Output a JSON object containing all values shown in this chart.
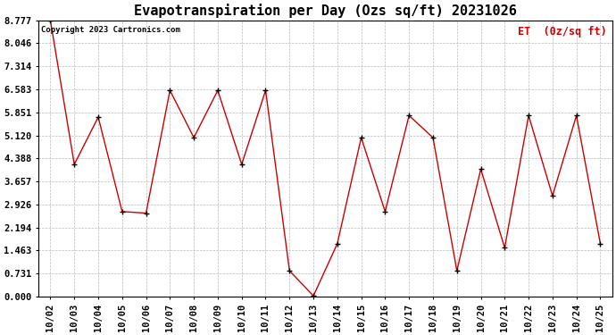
{
  "title": "Evapotranspiration per Day (Ozs sq/ft) 20231026",
  "legend_label": "ET  (0z/sq ft)",
  "copyright": "Copyright 2023 Cartronics.com",
  "dates": [
    "10/02",
    "10/03",
    "10/04",
    "10/05",
    "10/06",
    "10/07",
    "10/08",
    "10/09",
    "10/10",
    "10/11",
    "10/12",
    "10/13",
    "10/14",
    "10/15",
    "10/16",
    "10/17",
    "10/18",
    "10/19",
    "10/20",
    "10/21",
    "10/22",
    "10/23",
    "10/24",
    "10/25"
  ],
  "values": [
    8.777,
    4.2,
    5.7,
    2.7,
    2.65,
    6.55,
    5.05,
    6.55,
    4.2,
    6.55,
    0.82,
    0.02,
    1.68,
    5.05,
    2.7,
    5.75,
    5.05,
    0.82,
    4.05,
    1.55,
    5.75,
    3.2,
    5.75,
    1.68
  ],
  "yticks": [
    0.0,
    0.731,
    1.463,
    2.194,
    2.926,
    3.657,
    4.388,
    5.12,
    5.851,
    6.583,
    7.314,
    8.046,
    8.777
  ],
  "ymin": 0.0,
  "ymax": 8.777,
  "line_color": "#cc0000",
  "marker_color": "#000000",
  "bg_color": "#ffffff",
  "grid_color": "#bbbbbb",
  "title_color": "#000000",
  "legend_color": "#cc0000",
  "copyright_color": "#000000",
  "title_fontsize": 11,
  "legend_fontsize": 8.5,
  "copyright_fontsize": 6.5,
  "tick_fontsize": 7.5,
  "figwidth": 6.9,
  "figheight": 3.75,
  "dpi": 100
}
